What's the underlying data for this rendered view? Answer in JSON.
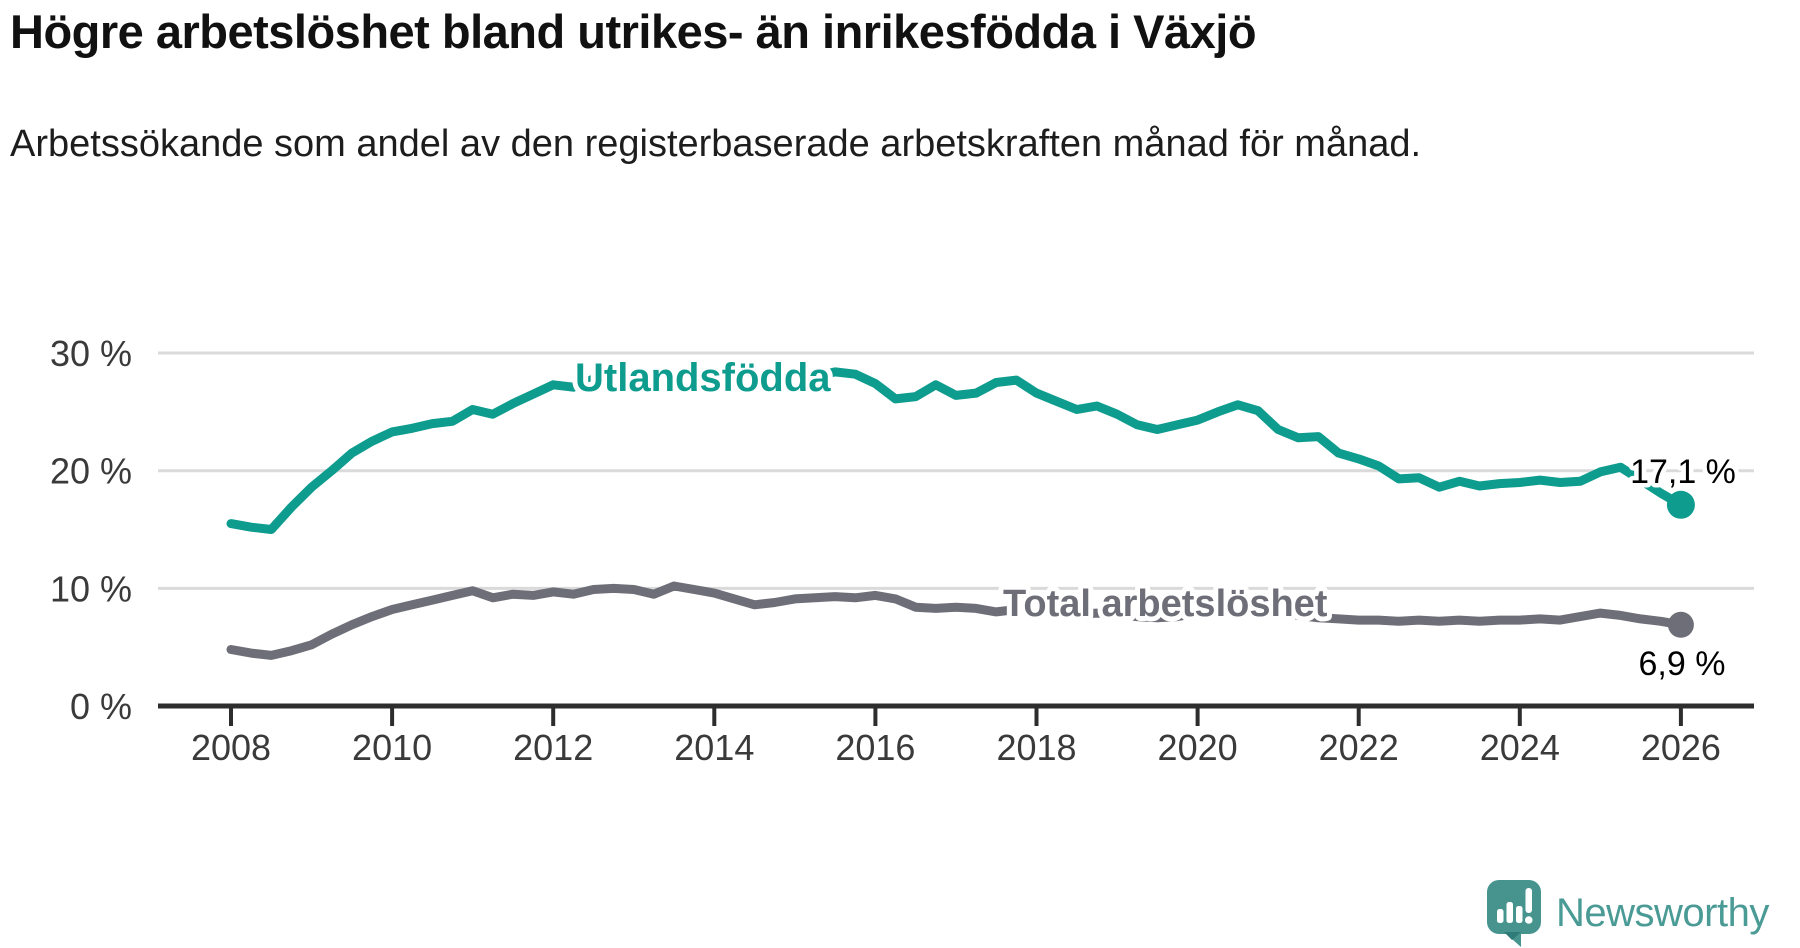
{
  "chart_data": {
    "type": "line",
    "title": "Högre arbetslöshet bland utrikes- än inrikesfödda i Växjö",
    "subtitle": "Arbetssökande som andel av den registerbaserade arbetskraften månad för månad.",
    "x_start": 2008,
    "x_step_years": 0.25,
    "x_ticks": [
      "2008",
      "2010",
      "2012",
      "2014",
      "2016",
      "2018",
      "2020",
      "2022",
      "2024",
      "2026"
    ],
    "y_ticks": [
      {
        "pct": 30,
        "label": "30 %"
      },
      {
        "pct": 20,
        "label": "20 %"
      },
      {
        "pct": 10,
        "label": "10 %"
      },
      {
        "pct": 0,
        "label": "0 %"
      }
    ],
    "ylim": [
      0,
      31
    ],
    "xlim": [
      2007.1,
      2026.9
    ],
    "grid": true,
    "legend": "inline-labels",
    "series": [
      {
        "name": "Utlandsfödda",
        "color": "#0d9c8d",
        "end_label": "17,1 %",
        "values": [
          15.5,
          15.2,
          15.0,
          16.9,
          18.6,
          20.0,
          21.5,
          22.5,
          23.3,
          23.6,
          24.0,
          24.2,
          25.2,
          24.8,
          25.7,
          26.5,
          27.3,
          27.1,
          27.8,
          27.6,
          28.0,
          28.3,
          28.0,
          27.8,
          28.1,
          27.9,
          28.2,
          28.0,
          27.8,
          28.0,
          28.4,
          28.2,
          27.4,
          26.1,
          26.3,
          27.3,
          26.4,
          26.6,
          27.5,
          27.7,
          26.6,
          25.9,
          25.2,
          25.5,
          24.8,
          23.9,
          23.5,
          23.9,
          24.3,
          25.0,
          25.6,
          25.1,
          23.5,
          22.8,
          22.9,
          21.5,
          21.0,
          20.4,
          19.3,
          19.4,
          18.6,
          19.1,
          18.7,
          18.9,
          19.0,
          19.2,
          19.0,
          19.1,
          19.9,
          20.3,
          19.2,
          18.1,
          17.1
        ]
      },
      {
        "name": "Total arbetslöshet",
        "color": "#6e6e78",
        "end_label": "6,9 %",
        "values": [
          4.8,
          4.5,
          4.3,
          4.7,
          5.2,
          6.1,
          6.9,
          7.6,
          8.2,
          8.6,
          9.0,
          9.4,
          9.8,
          9.2,
          9.5,
          9.4,
          9.7,
          9.5,
          9.9,
          10.0,
          9.9,
          9.5,
          10.2,
          9.9,
          9.6,
          9.1,
          8.6,
          8.8,
          9.1,
          9.2,
          9.3,
          9.2,
          9.4,
          9.1,
          8.4,
          8.3,
          8.4,
          8.3,
          8.0,
          8.2,
          8.1,
          7.9,
          7.8,
          7.9,
          7.8,
          7.6,
          7.5,
          7.6,
          7.9,
          8.4,
          8.5,
          8.2,
          8.0,
          7.7,
          7.5,
          7.4,
          7.3,
          7.3,
          7.2,
          7.3,
          7.2,
          7.3,
          7.2,
          7.3,
          7.3,
          7.4,
          7.3,
          7.6,
          7.9,
          7.7,
          7.4,
          7.2,
          6.9
        ]
      }
    ]
  },
  "footer": {
    "brand": "Newsworthy"
  },
  "icons": {
    "logo": "newsworthy-speech-bubble-bar-chart-icon"
  },
  "colors": {
    "foreign_born_line": "#0d9c8d",
    "total_line": "#6e6e78",
    "gridline": "#dadada",
    "axis": "#2d2d2d",
    "logo_teal": "#47948f"
  }
}
